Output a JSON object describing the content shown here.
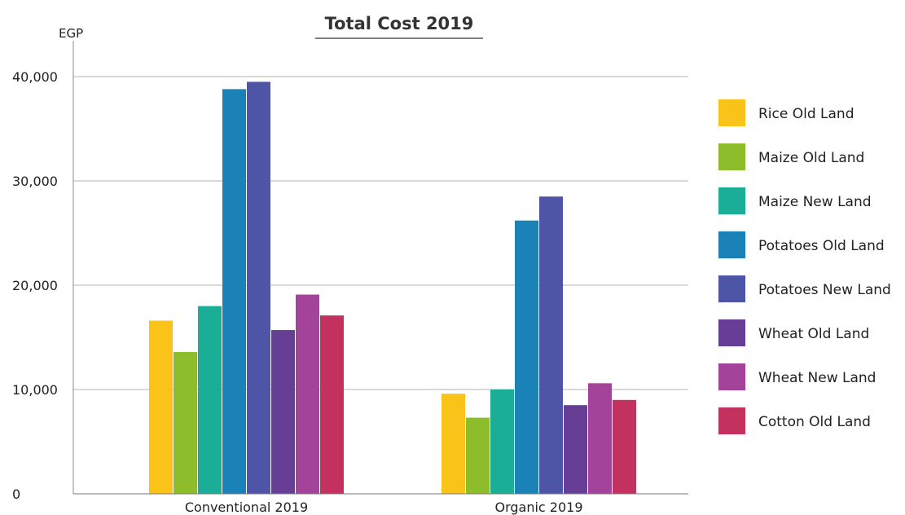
{
  "chart_data": {
    "type": "bar",
    "title": "Total Cost 2019",
    "ylabel": "EGP",
    "xlabel": "",
    "ylim": [
      0,
      40000
    ],
    "yticks": [
      0,
      10000,
      20000,
      30000,
      40000
    ],
    "ytick_labels": [
      "0",
      "10,000",
      "20,000",
      "30,000",
      "40,000"
    ],
    "grid": true,
    "legend_position": "right",
    "categories": [
      "Conventional 2019",
      "Organic 2019"
    ],
    "series": [
      {
        "name": "Rice Old Land",
        "color": "#F9C31A",
        "values": [
          16600,
          9600
        ]
      },
      {
        "name": "Maize Old Land",
        "color": "#8DBD2A",
        "values": [
          13600,
          7300
        ]
      },
      {
        "name": "Maize New Land",
        "color": "#1AAE97",
        "values": [
          18000,
          10000
        ]
      },
      {
        "name": "Potatoes Old Land",
        "color": "#1B82B7",
        "values": [
          38800,
          26200
        ]
      },
      {
        "name": "Potatoes New Land",
        "color": "#4E55A6",
        "values": [
          39500,
          28500
        ]
      },
      {
        "name": "Wheat Old Land",
        "color": "#673E96",
        "values": [
          15700,
          8500
        ]
      },
      {
        "name": "Wheat New Land",
        "color": "#A4439A",
        "values": [
          19100,
          10600
        ]
      },
      {
        "name": "Cotton Old Land",
        "color": "#C3325E",
        "values": [
          17100,
          9000
        ]
      }
    ]
  }
}
